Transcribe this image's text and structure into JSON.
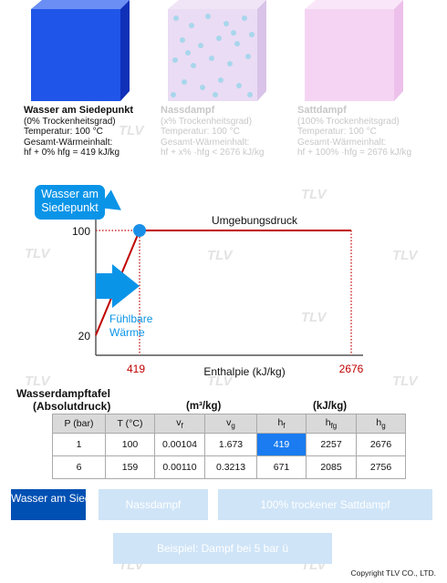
{
  "states": [
    {
      "title": "Wasser am Siedepunkt",
      "lines": [
        "(0% Trockenheitsgrad)",
        "Temperatur: 100 °C",
        "Gesamt-Wärmeinhalt:",
        "hf + 0% hfg = 419 kJ/kg"
      ],
      "color": "#1f55e8",
      "active": true
    },
    {
      "title": "Nassdampf",
      "lines": [
        "(x% Trockenheitsgrad)",
        "Temperatur: 100 °C",
        "Gesamt-Wärmeinhalt:",
        "hf + x% ·hfg < 2676 kJ/kg"
      ],
      "color": "#e8d6f2",
      "active": false
    },
    {
      "title": "Sattdampf",
      "lines": [
        "(100% Trockenheitsgrad)",
        "Temperatur: 100 °C",
        "Gesamt-Wärmeinhalt:",
        "hf + 100% ·hfg = 2676 kJ/kg"
      ],
      "color": "#f5d4f3",
      "active": false
    }
  ],
  "watermark": "TLV",
  "chart": {
    "callout": "Wasser am Siedepunkt",
    "pressure_label": "Umgebungsdruck",
    "sensible_label": "Fühlbare Wärme",
    "xlabel": "Enthalpie (kJ/kg)",
    "y_ticks": [
      "100",
      "20"
    ],
    "x_ticks": [
      "419",
      "2676"
    ]
  },
  "chart_data": {
    "type": "line",
    "xlabel": "Enthalpie (kJ/kg)",
    "ylabel": "",
    "series": [
      {
        "x": [
          0,
          419,
          2676
        ],
        "y": [
          20,
          100,
          100
        ]
      }
    ],
    "marker": {
      "x": 419,
      "y": 100
    },
    "x_ticks": [
      419,
      2676
    ],
    "y_ticks": [
      20,
      100
    ]
  },
  "table": {
    "title": "Wasserdampftafel",
    "subtitle": "(Absolutdruck)",
    "unit_volume": "(m³/kg)",
    "unit_enthalpy": "(kJ/kg)",
    "headers": [
      "P (bar)",
      "T (°C)",
      "vf",
      "vg",
      "hf",
      "hfg",
      "hg"
    ],
    "rows": [
      [
        "1",
        "100",
        "0.00104",
        "1.673",
        "419",
        "2257",
        "2676"
      ],
      [
        "6",
        "159",
        "0.00110",
        "0.3213",
        "671",
        "2085",
        "2756"
      ]
    ],
    "highlight": {
      "row": 0,
      "col": 4,
      "color": "#1a7cf0"
    }
  },
  "buttons": {
    "b1": "Wasser am Siedepunkt",
    "b2": "Nassdampf",
    "b3": "100% trockener Sattdampf",
    "b4": "Beispiel: Dampf bei 5 bar ü"
  },
  "copyright": "Copyright TLV CO., LTD."
}
